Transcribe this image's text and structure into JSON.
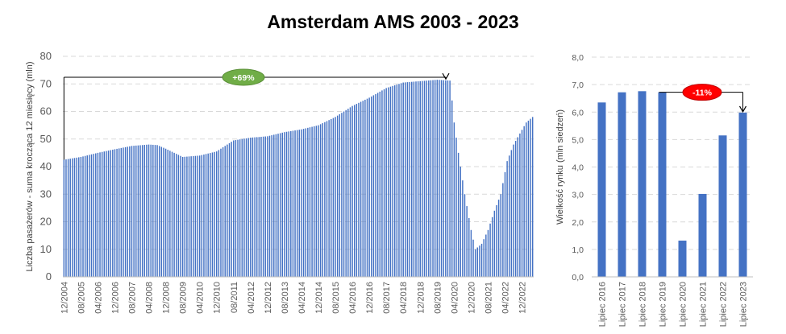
{
  "title": "Amsterdam AMS 2003 - 2023",
  "colors": {
    "bar": "#4472c4",
    "grid": "#d9d9d9",
    "badge_up": "#70ad47",
    "badge_down": "#ff0000"
  },
  "chart_data": [
    {
      "type": "bar",
      "ylabel": "Liczba pasażerów - suma krocząca 12 miesięcy (mln)",
      "ylim": [
        0,
        80
      ],
      "yticks": [
        "0",
        "10",
        "20",
        "30",
        "40",
        "50",
        "60",
        "70",
        "80"
      ],
      "x_tick_labels": [
        "12/2004",
        "08/2005",
        "04/2006",
        "12/2006",
        "08/2007",
        "04/2008",
        "12/2008",
        "08/2009",
        "04/2010",
        "12/2010",
        "08/2011",
        "04/2012",
        "12/2012",
        "08/2013",
        "04/2014",
        "12/2014",
        "08/2015",
        "04/2016",
        "12/2016",
        "08/2017",
        "04/2018",
        "12/2018",
        "08/2019",
        "04/2020",
        "12/2020",
        "08/2021",
        "04/2022",
        "12/2022"
      ],
      "series_anchor_points": [
        [
          "2004-12",
          42.5
        ],
        [
          "2005-08",
          43.5
        ],
        [
          "2006-04",
          45
        ],
        [
          "2006-12",
          46.3
        ],
        [
          "2007-08",
          47.5
        ],
        [
          "2008-04",
          48.0
        ],
        [
          "2008-08",
          47.8
        ],
        [
          "2008-12",
          46.5
        ],
        [
          "2009-08",
          43.5
        ],
        [
          "2010-04",
          44.0
        ],
        [
          "2010-12",
          45.5
        ],
        [
          "2011-08",
          49.5
        ],
        [
          "2012-04",
          50.5
        ],
        [
          "2012-12",
          51.0
        ],
        [
          "2013-08",
          52.5
        ],
        [
          "2014-04",
          53.5
        ],
        [
          "2014-12",
          55.0
        ],
        [
          "2015-08",
          58.0
        ],
        [
          "2016-04",
          62.0
        ],
        [
          "2016-12",
          65.0
        ],
        [
          "2017-08",
          68.5
        ],
        [
          "2018-04",
          70.5
        ],
        [
          "2018-12",
          71.0
        ],
        [
          "2019-08",
          71.5
        ],
        [
          "2020-02",
          71.2
        ],
        [
          "2020-03",
          64.0
        ],
        [
          "2020-04",
          56.0
        ],
        [
          "2020-06",
          45.0
        ],
        [
          "2020-09",
          30.0
        ],
        [
          "2020-12",
          17.0
        ],
        [
          "2021-02",
          10.0
        ],
        [
          "2021-05",
          12.0
        ],
        [
          "2021-08",
          17.0
        ],
        [
          "2021-11",
          24.0
        ],
        [
          "2022-02",
          30.0
        ],
        [
          "2022-05",
          42.0
        ],
        [
          "2022-08",
          48.0
        ],
        [
          "2022-11",
          52.0
        ],
        [
          "2023-02",
          56.0
        ],
        [
          "2023-05",
          58.0
        ]
      ],
      "annotation": {
        "label": "+69%",
        "from_value": 42.5,
        "to_value": 71.5
      }
    },
    {
      "type": "bar",
      "ylabel": "Wielkość rynku (mln siedzeń)",
      "ylim": [
        0,
        8
      ],
      "yticks": [
        "0,0",
        "1,0",
        "2,0",
        "3,0",
        "4,0",
        "5,0",
        "6,0",
        "7,0",
        "8,0"
      ],
      "categories": [
        "Lipiec 2016",
        "Lipiec 2017",
        "Lipiec 2018",
        "Lipiec 2019",
        "Lipiec 2020",
        "Lipiec 2021",
        "Lipiec 2022",
        "Lipiec 2023"
      ],
      "values": [
        6.35,
        6.72,
        6.76,
        6.72,
        1.32,
        3.02,
        5.15,
        5.98
      ],
      "annotation": {
        "label": "-11%",
        "from_index": 3,
        "to_index": 7
      }
    }
  ]
}
